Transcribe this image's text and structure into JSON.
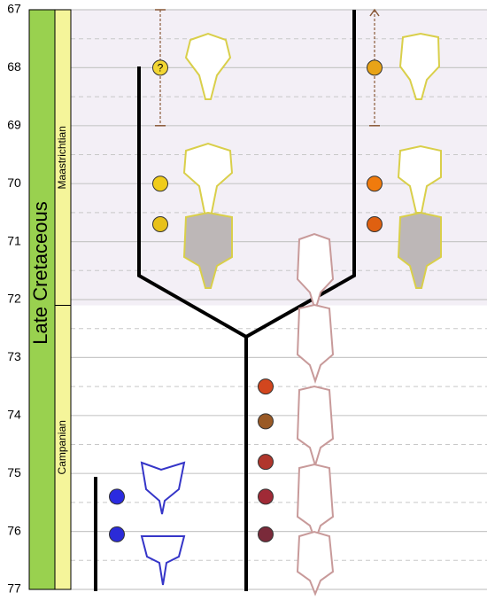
{
  "axis": {
    "range": [
      67,
      77
    ],
    "ticks": [
      67,
      68,
      69,
      70,
      71,
      72,
      73,
      74,
      75,
      76,
      77
    ]
  },
  "period": "Late Cretaceous",
  "stages": [
    {
      "name": "Maastrichtian",
      "range": [
        67,
        72.1
      ]
    },
    {
      "name": "Campanian",
      "range": [
        72.1,
        77
      ]
    }
  ],
  "lineages": [
    {
      "points": [
        {
          "age": 75.4,
          "color": "#2b2be0"
        },
        {
          "age": 76.05,
          "color": "#2b2bd8"
        }
      ]
    },
    {
      "points": [
        {
          "age": 68,
          "color": "#f2d633",
          "label": "?",
          "range": [
            67,
            69
          ]
        },
        {
          "age": 70,
          "color": "#f0cc1a"
        },
        {
          "age": 70.7,
          "color": "#e8c11a"
        }
      ]
    },
    {
      "points": [
        {
          "age": 73.5,
          "color": "#d2461e"
        },
        {
          "age": 74.1,
          "color": "#9a5a26"
        },
        {
          "age": 74.8,
          "color": "#b0362c"
        },
        {
          "age": 75.4,
          "color": "#a02a36"
        },
        {
          "age": 76.05,
          "color": "#7a2a3a"
        }
      ]
    },
    {
      "points": [
        {
          "age": 68,
          "color": "#e8a317",
          "range": [
            67,
            69
          ]
        },
        {
          "age": 70,
          "color": "#f07b0d"
        },
        {
          "age": 70.7,
          "color": "#df6010"
        }
      ]
    }
  ]
}
